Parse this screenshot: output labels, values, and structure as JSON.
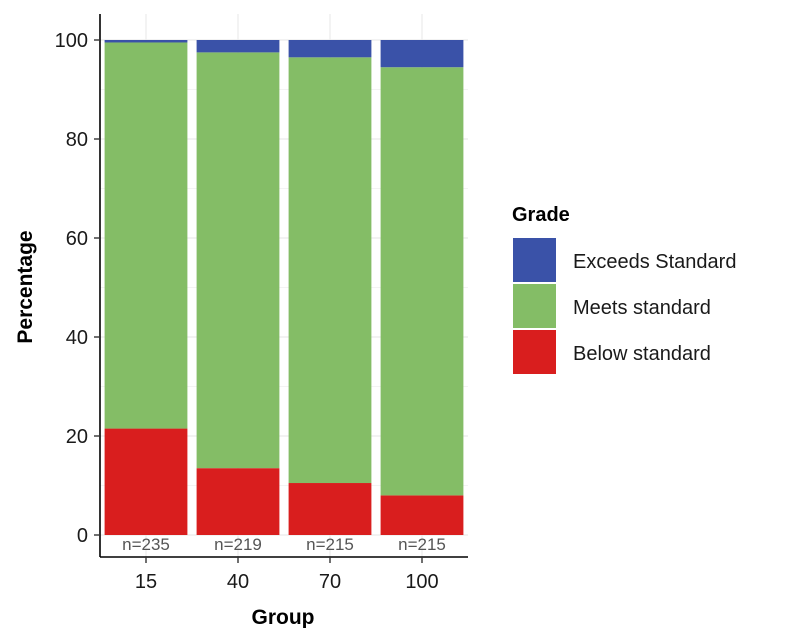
{
  "chart_data": {
    "type": "bar",
    "stacked": true,
    "categories": [
      "15",
      "40",
      "70",
      "100"
    ],
    "series": [
      {
        "name": "Below standard",
        "color": "#d91e1e",
        "values": [
          21.5,
          13.5,
          10.5,
          8.0
        ]
      },
      {
        "name": "Meets standard",
        "color": "#84bd66",
        "values": [
          78.0,
          84.0,
          86.0,
          86.5
        ]
      },
      {
        "name": "Exceeds Standard",
        "color": "#3a52a8",
        "values": [
          0.5,
          2.5,
          3.5,
          5.5
        ]
      }
    ],
    "n_labels": [
      "n=235",
      "n=219",
      "n=215",
      "n=215"
    ],
    "xlabel": "Group",
    "ylabel": "Percentage",
    "ylim": [
      0,
      100
    ],
    "yticks": [
      0,
      20,
      40,
      60,
      80,
      100
    ],
    "grid": true,
    "legend": {
      "title": "Grade",
      "position": "right",
      "entries": [
        "Exceeds Standard",
        "Meets standard",
        "Below standard"
      ]
    }
  }
}
